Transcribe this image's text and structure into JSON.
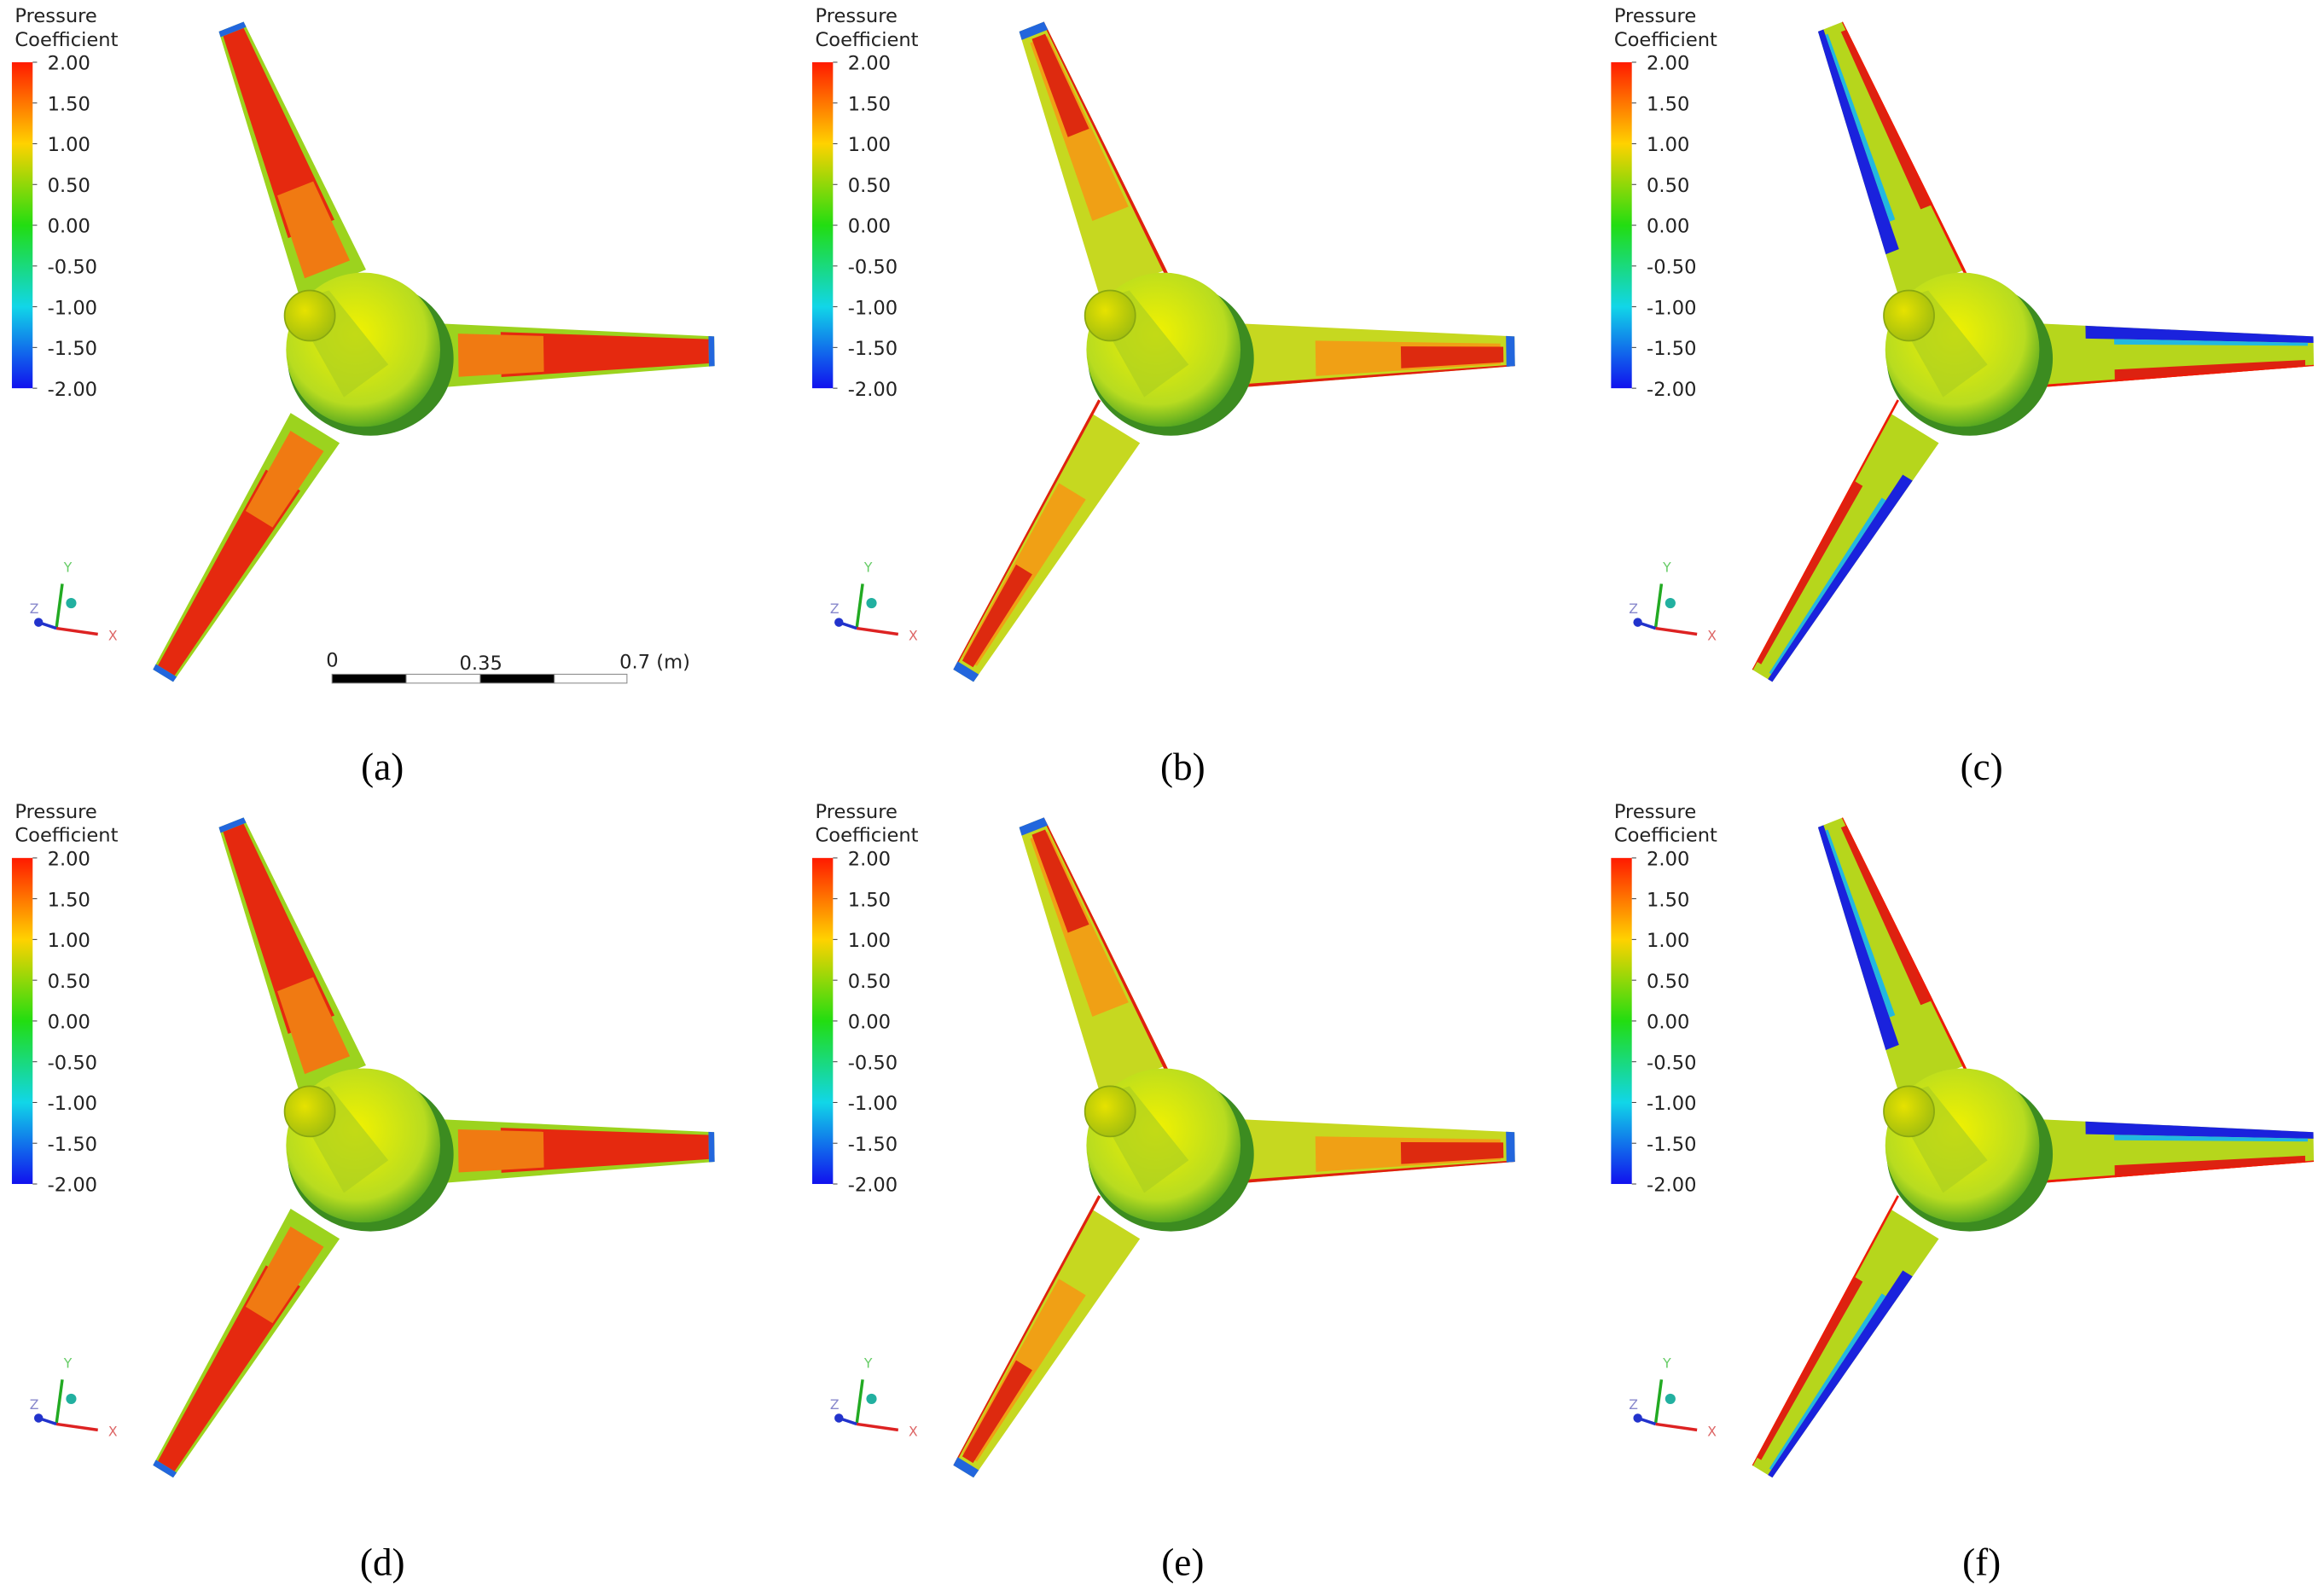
{
  "panels": [
    {
      "label": "(a)",
      "legend": {
        "title": [
          "Pressure",
          "Coefficient"
        ],
        "ticks": [
          {
            "value": 2,
            "label": "2.00"
          },
          {
            "value": 1.5,
            "label": "1.50"
          },
          {
            "value": 1,
            "label": "1.00"
          },
          {
            "value": 0.5,
            "label": "0.50"
          },
          {
            "value": 0,
            "label": "0.00"
          },
          {
            "value": -0.5,
            "label": "-0.50"
          },
          {
            "value": -1,
            "label": "-1.00"
          },
          {
            "value": -1.5,
            "label": "-1.50"
          },
          {
            "value": -2,
            "label": "-2.00"
          }
        ]
      },
      "axes": [
        "Y",
        "Z",
        "X"
      ]
    },
    {
      "label": "(b)",
      "legend": {
        "title": [
          "Pressure",
          "Coefficient"
        ],
        "ticks": [
          {
            "value": 2,
            "label": "2.00"
          },
          {
            "value": 1.5,
            "label": "1.50"
          },
          {
            "value": 1,
            "label": "1.00"
          },
          {
            "value": 0.5,
            "label": "0.50"
          },
          {
            "value": 0,
            "label": "0.00"
          },
          {
            "value": -0.5,
            "label": "-0.50"
          },
          {
            "value": -1,
            "label": "-1.00"
          },
          {
            "value": -1.5,
            "label": "-1.50"
          },
          {
            "value": -2,
            "label": "-2.00"
          }
        ]
      },
      "axes": [
        "Y",
        "Z",
        "X"
      ]
    },
    {
      "label": "(c)",
      "legend": {
        "title": [
          "Pressure",
          "Coefficient"
        ],
        "ticks": [
          {
            "value": 2,
            "label": "2.00"
          },
          {
            "value": 1.5,
            "label": "1.50"
          },
          {
            "value": 1,
            "label": "1.00"
          },
          {
            "value": 0.5,
            "label": "0.50"
          },
          {
            "value": 0,
            "label": "0.00"
          },
          {
            "value": -0.5,
            "label": "-0.50"
          },
          {
            "value": -1,
            "label": "-1.00"
          },
          {
            "value": -1.5,
            "label": "-1.50"
          },
          {
            "value": -2,
            "label": "-2.00"
          }
        ]
      },
      "axes": [
        "Y",
        "Z",
        "X"
      ]
    },
    {
      "label": "(d)",
      "legend": {
        "title": [
          "Pressure",
          "Coefficient"
        ],
        "ticks": [
          {
            "value": 2,
            "label": "2.00"
          },
          {
            "value": 1.5,
            "label": "1.50"
          },
          {
            "value": 1,
            "label": "1.00"
          },
          {
            "value": 0.5,
            "label": "0.50"
          },
          {
            "value": 0,
            "label": "0.00"
          },
          {
            "value": -0.5,
            "label": "-0.50"
          },
          {
            "value": -1,
            "label": "-1.00"
          },
          {
            "value": -1.5,
            "label": "-1.50"
          },
          {
            "value": -2,
            "label": "-2.00"
          }
        ]
      },
      "axes": [
        "Y",
        "Z",
        "X"
      ]
    },
    {
      "label": "(e)",
      "legend": {
        "title": [
          "Pressure",
          "Coefficient"
        ],
        "ticks": [
          {
            "value": 2,
            "label": "2.00"
          },
          {
            "value": 1.5,
            "label": "1.50"
          },
          {
            "value": 1,
            "label": "1.00"
          },
          {
            "value": 0.5,
            "label": "0.50"
          },
          {
            "value": 0,
            "label": "0.00"
          },
          {
            "value": -0.5,
            "label": "-0.50"
          },
          {
            "value": -1,
            "label": "-1.00"
          },
          {
            "value": -1.5,
            "label": "-1.50"
          },
          {
            "value": -2,
            "label": "-2.00"
          }
        ]
      },
      "axes": [
        "Y",
        "Z",
        "X"
      ]
    },
    {
      "label": "(f)",
      "legend": {
        "title": [
          "Pressure",
          "Coefficient"
        ],
        "ticks": [
          {
            "value": 2,
            "label": "2.00"
          },
          {
            "value": 1.5,
            "label": "1.50"
          },
          {
            "value": 1,
            "label": "1.00"
          },
          {
            "value": 0.5,
            "label": "0.50"
          },
          {
            "value": 0,
            "label": "0.00"
          },
          {
            "value": -0.5,
            "label": "-0.50"
          },
          {
            "value": -1,
            "label": "-1.00"
          },
          {
            "value": -1.5,
            "label": "-1.50"
          },
          {
            "value": -2,
            "label": "-2.00"
          }
        ]
      },
      "axes": [
        "Y",
        "Z",
        "X"
      ]
    }
  ],
  "scale_bar": {
    "labels": [
      "0",
      "0.35",
      "0.7 (m)"
    ]
  }
}
